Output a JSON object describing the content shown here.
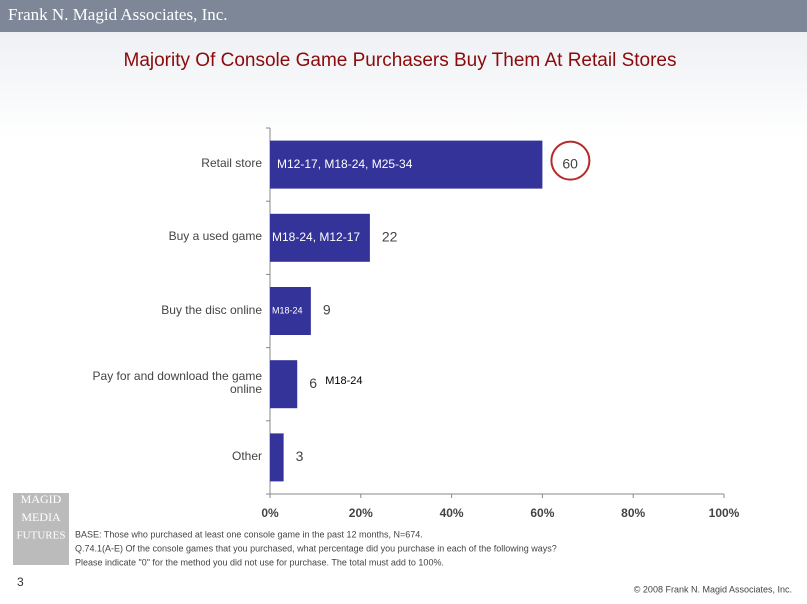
{
  "header": {
    "company": "Frank N. Magid Associates, Inc."
  },
  "chart_data": {
    "type": "bar",
    "orientation": "horizontal",
    "title": "Majority Of Console Game Purchasers Buy Them At Retail Stores",
    "categories": [
      "Retail store",
      "Buy a used game",
      "Buy the disc online",
      "Pay for and download the game online",
      "Other"
    ],
    "values": [
      60,
      22,
      9,
      6,
      3
    ],
    "annotations": [
      "M12-17, M18-24, M25-34",
      "M18-24, M12-17",
      "M18-24",
      "M18-24",
      null
    ],
    "color": "#333399",
    "xlim": [
      0,
      100
    ],
    "xticks": [
      {
        "value": 0,
        "label": "0%"
      },
      {
        "value": 20,
        "label": "20%"
      },
      {
        "value": 40,
        "label": "40%"
      },
      {
        "value": 60,
        "label": "60%"
      },
      {
        "value": 80,
        "label": "80%"
      },
      {
        "value": 100,
        "label": "100%"
      }
    ],
    "grid": false
  },
  "logo": [
    "MAGID",
    "MEDIA",
    "FUTURES"
  ],
  "footnotes": [
    "BASE: Those who purchased at least one console game in the past 12 months, N=674.",
    "Q.74.1(A-E) Of the console games that you purchased, what percentage did you purchase in each of the following ways?",
    "Please indicate \"0\" for the method you did not use for purchase. The total must add to 100%."
  ],
  "page_number": "3",
  "copyright": "© 2008 Frank N. Magid Associates, Inc."
}
